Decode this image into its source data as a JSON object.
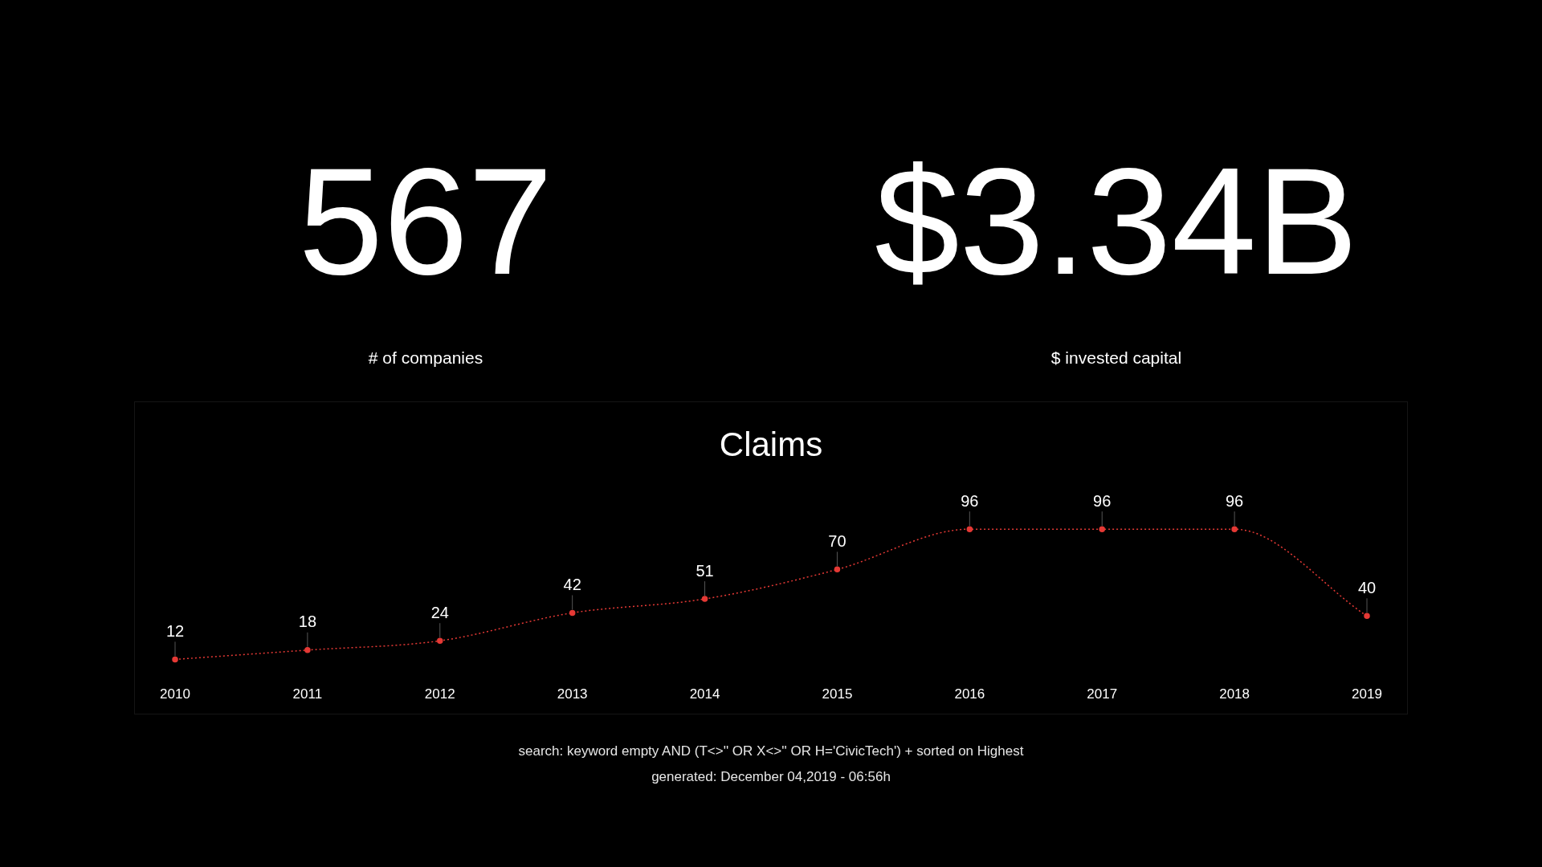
{
  "chart_data": [
    {
      "type": "other",
      "annotations": [
        "567",
        "# of companies",
        "$3.34B",
        "$ invested capital"
      ]
    },
    {
      "type": "line",
      "title": "Claims",
      "categories": [
        "2010",
        "2011",
        "2012",
        "2013",
        "2014",
        "2015",
        "2016",
        "2017",
        "2018",
        "2019"
      ],
      "values": [
        12,
        18,
        24,
        42,
        51,
        70,
        96,
        96,
        96,
        40
      ],
      "color": "#e53935",
      "marker": "circle",
      "line_style": "dotted",
      "data_labels": true,
      "tick_labels": "x",
      "legend": false,
      "annotations": [
        "search: keyword empty AND (T<>'' OR X<>'' OR H='CivicTech') + sorted on Highest",
        "generated: December 04,2019 - 06:56h"
      ]
    }
  ]
}
